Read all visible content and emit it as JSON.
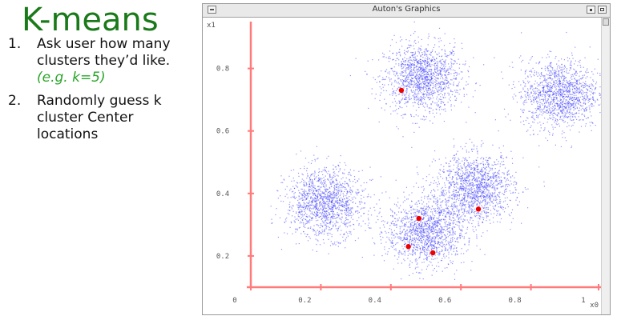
{
  "slide": {
    "title": "K-means",
    "steps": [
      {
        "num": "1.",
        "text": "Ask user how many clusters they’d like.",
        "example": "(e.g. k=5)"
      },
      {
        "num": "2.",
        "text": "Randomly guess k cluster Center locations"
      }
    ]
  },
  "window": {
    "title": "Auton's Graphics"
  },
  "colors": {
    "title": "#1a7a1a",
    "example": "#2aa52a",
    "axes": "#ff7a7a",
    "points": "#3a3aff",
    "centers": "#ee0000"
  },
  "chart_data": {
    "type": "scatter",
    "xlabel": "x0",
    "ylabel": "x1",
    "xlim": [
      0,
      1
    ],
    "ylim": [
      0.1,
      0.95
    ],
    "x_ticks": [
      "0",
      "0.2",
      "0.4",
      "0.6",
      "0.8",
      "1"
    ],
    "y_ticks": [
      "0.2",
      "0.4",
      "0.6",
      "0.8"
    ],
    "clusters": [
      {
        "center_x": 0.49,
        "center_y": 0.77,
        "spread": 0.055,
        "points": 1400
      },
      {
        "center_x": 0.88,
        "center_y": 0.72,
        "spread": 0.055,
        "points": 1400
      },
      {
        "center_x": 0.21,
        "center_y": 0.37,
        "spread": 0.055,
        "points": 1400
      },
      {
        "center_x": 0.64,
        "center_y": 0.42,
        "spread": 0.055,
        "points": 1400
      },
      {
        "center_x": 0.5,
        "center_y": 0.28,
        "spread": 0.055,
        "points": 1400
      }
    ],
    "centers": [
      {
        "x": 0.43,
        "y": 0.73
      },
      {
        "x": 0.48,
        "y": 0.32
      },
      {
        "x": 0.65,
        "y": 0.35
      },
      {
        "x": 0.45,
        "y": 0.23
      },
      {
        "x": 0.52,
        "y": 0.21
      }
    ]
  }
}
